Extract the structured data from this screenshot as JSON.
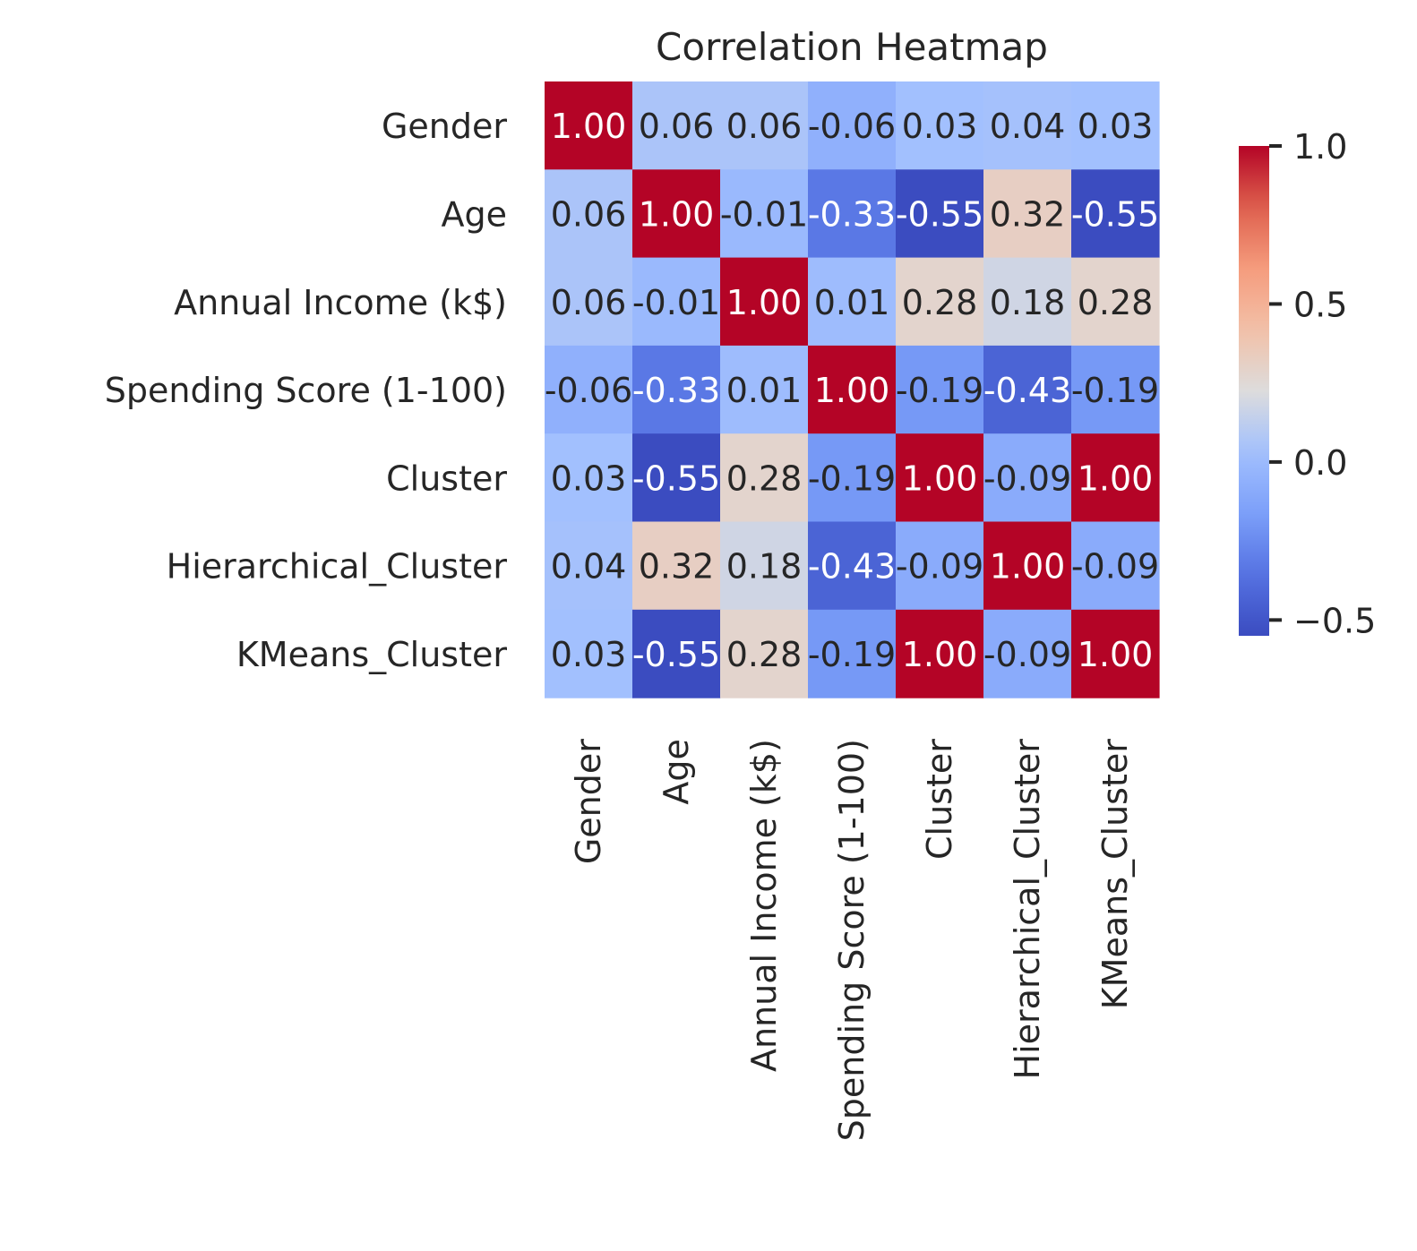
{
  "chart_data": {
    "type": "heatmap",
    "title": "Correlation Heatmap",
    "xlabel": "",
    "ylabel": "",
    "rows": [
      "Gender",
      "Age",
      "Annual Income (k$)",
      "Spending Score (1-100)",
      "Cluster",
      "Hierarchical_Cluster",
      "KMeans_Cluster"
    ],
    "columns": [
      "Gender",
      "Age",
      "Annual Income (k$)",
      "Spending Score (1-100)",
      "Cluster",
      "Hierarchical_Cluster",
      "KMeans_Cluster"
    ],
    "values": [
      [
        1.0,
        0.06,
        0.06,
        -0.06,
        0.03,
        0.04,
        0.03
      ],
      [
        0.06,
        1.0,
        -0.01,
        -0.33,
        -0.55,
        0.32,
        -0.55
      ],
      [
        0.06,
        -0.01,
        1.0,
        0.01,
        0.28,
        0.18,
        0.28
      ],
      [
        -0.06,
        -0.33,
        0.01,
        1.0,
        -0.19,
        -0.43,
        -0.19
      ],
      [
        0.03,
        -0.55,
        0.28,
        -0.19,
        1.0,
        -0.09,
        1.0
      ],
      [
        0.04,
        0.32,
        0.18,
        -0.43,
        -0.09,
        1.0,
        -0.09
      ],
      [
        0.03,
        -0.55,
        0.28,
        -0.19,
        1.0,
        -0.09,
        1.0
      ]
    ],
    "cell_labels": [
      [
        "1.00",
        "0.06",
        "0.06",
        "-0.06",
        "0.03",
        "0.04",
        "0.03"
      ],
      [
        "0.06",
        "1.00",
        "-0.01",
        "-0.33",
        "-0.55",
        "0.32",
        "-0.55"
      ],
      [
        "0.06",
        "-0.01",
        "1.00",
        "0.01",
        "0.28",
        "0.18",
        "0.28"
      ],
      [
        "-0.06",
        "-0.33",
        "0.01",
        "1.00",
        "-0.19",
        "-0.43",
        "-0.19"
      ],
      [
        "0.03",
        "-0.55",
        "0.28",
        "-0.19",
        "1.00",
        "-0.09",
        "1.00"
      ],
      [
        "0.04",
        "0.32",
        "0.18",
        "-0.43",
        "-0.09",
        "1.00",
        "-0.09"
      ],
      [
        "0.03",
        "-0.55",
        "0.28",
        "-0.19",
        "1.00",
        "-0.09",
        "1.00"
      ]
    ],
    "colormap": "coolwarm",
    "vmin": -0.55,
    "vmax": 1.0,
    "colorbar": {
      "ticks": [
        1.0,
        0.5,
        0.0,
        -0.5
      ],
      "tick_labels": [
        "1.0",
        "0.5",
        "0.0",
        "−0.5"
      ],
      "placement": "right"
    },
    "annotate": true,
    "grid": false
  }
}
